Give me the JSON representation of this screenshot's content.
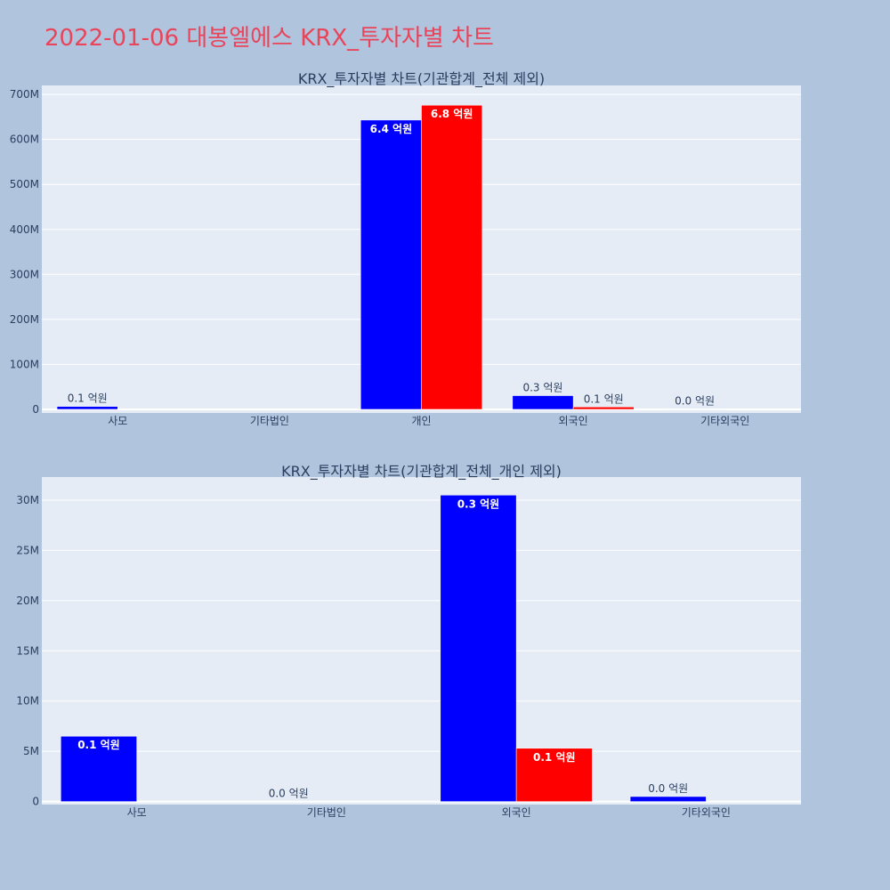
{
  "page": {
    "title": "2022-01-06 대봉엘에스 KRX_투자자별 차트"
  },
  "colors": {
    "series_a": "#0000ff",
    "series_b": "#ff0000",
    "plot_bg": "#e5ecf6",
    "page_bg": "#b0c4de",
    "title": "#e8455a"
  },
  "chart_data": [
    {
      "type": "bar",
      "title": "KRX_투자자별 차트(기관합계_전체 제외)",
      "categories": [
        "사모",
        "기타법인",
        "개인",
        "외국인",
        "기타외국인"
      ],
      "series": [
        {
          "color": "#0000ff",
          "values": [
            6500000,
            0,
            643000000,
            30500000,
            500000
          ],
          "labels": [
            "0.1 억원",
            "",
            "6.4 억원",
            "0.3 억원",
            "0.0 억원"
          ]
        },
        {
          "color": "#ff0000",
          "values": [
            0,
            0,
            676000000,
            5300000,
            0
          ],
          "labels": [
            "",
            "",
            "6.8 억원",
            "0.1 억원",
            ""
          ]
        }
      ],
      "ylim": [
        -8000000,
        720000000
      ],
      "yticks": [
        0,
        100000000,
        200000000,
        300000000,
        400000000,
        500000000,
        600000000,
        700000000
      ],
      "ytick_labels": [
        "0",
        "100M",
        "200M",
        "300M",
        "400M",
        "500M",
        "600M",
        "700M"
      ],
      "grid": true
    },
    {
      "type": "bar",
      "title": "KRX_투자자별 차트(기관합계_전체_개인 제외)",
      "categories": [
        "사모",
        "기타법인",
        "외국인",
        "기타외국인"
      ],
      "series": [
        {
          "color": "#0000ff",
          "values": [
            6500000,
            0,
            30500000,
            500000
          ],
          "labels": [
            "0.1 억원",
            "0.0 억원",
            "0.3 억원",
            "0.0 억원"
          ]
        },
        {
          "color": "#ff0000",
          "values": [
            0,
            0,
            5300000,
            0
          ],
          "labels": [
            "",
            "",
            "0.1 억원",
            ""
          ]
        }
      ],
      "ylim": [
        -300000,
        32300000
      ],
      "yticks": [
        0,
        5000000,
        10000000,
        15000000,
        20000000,
        25000000,
        30000000
      ],
      "ytick_labels": [
        "0",
        "5M",
        "10M",
        "15M",
        "20M",
        "25M",
        "30M"
      ],
      "grid": true
    }
  ]
}
